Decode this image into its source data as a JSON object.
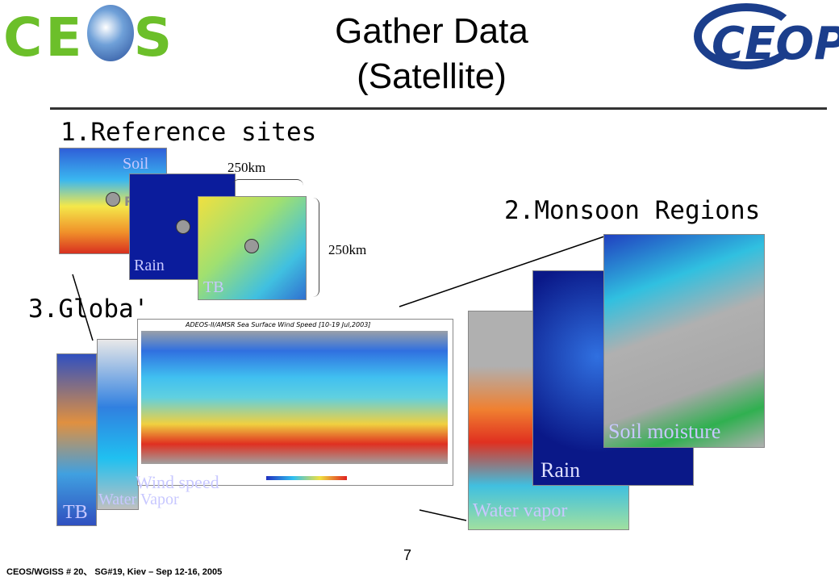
{
  "header": {
    "logo_left": "CEOS",
    "title_line1": "Gather Data",
    "title_line2": "(Satellite)",
    "logo_right": "CEOP"
  },
  "reference_sites": {
    "heading": "1.Reference sites",
    "soil": "Soil",
    "rs": "RS",
    "rain": "Rain",
    "tb": "TB",
    "width_label": "250km",
    "height_label": "250km"
  },
  "monsoon": {
    "heading": "2.Monsoon Regions",
    "water_vapor": "Water vapor",
    "rain": "Rain",
    "soil_moisture": "Soil moisture"
  },
  "global": {
    "heading": "3.Globa'",
    "map_title": "ADEOS-II/AMSR Sea Surface Wind Speed [10-19 Jul,2003]",
    "wind_speed": "Wind speed",
    "water_vapor": "Water Vapor",
    "tb": "TB"
  },
  "footer": {
    "page_number": "7",
    "note": "CEOS/WGISS # 20、 SG#19, Kiev – Sep 12-16, 2005"
  }
}
